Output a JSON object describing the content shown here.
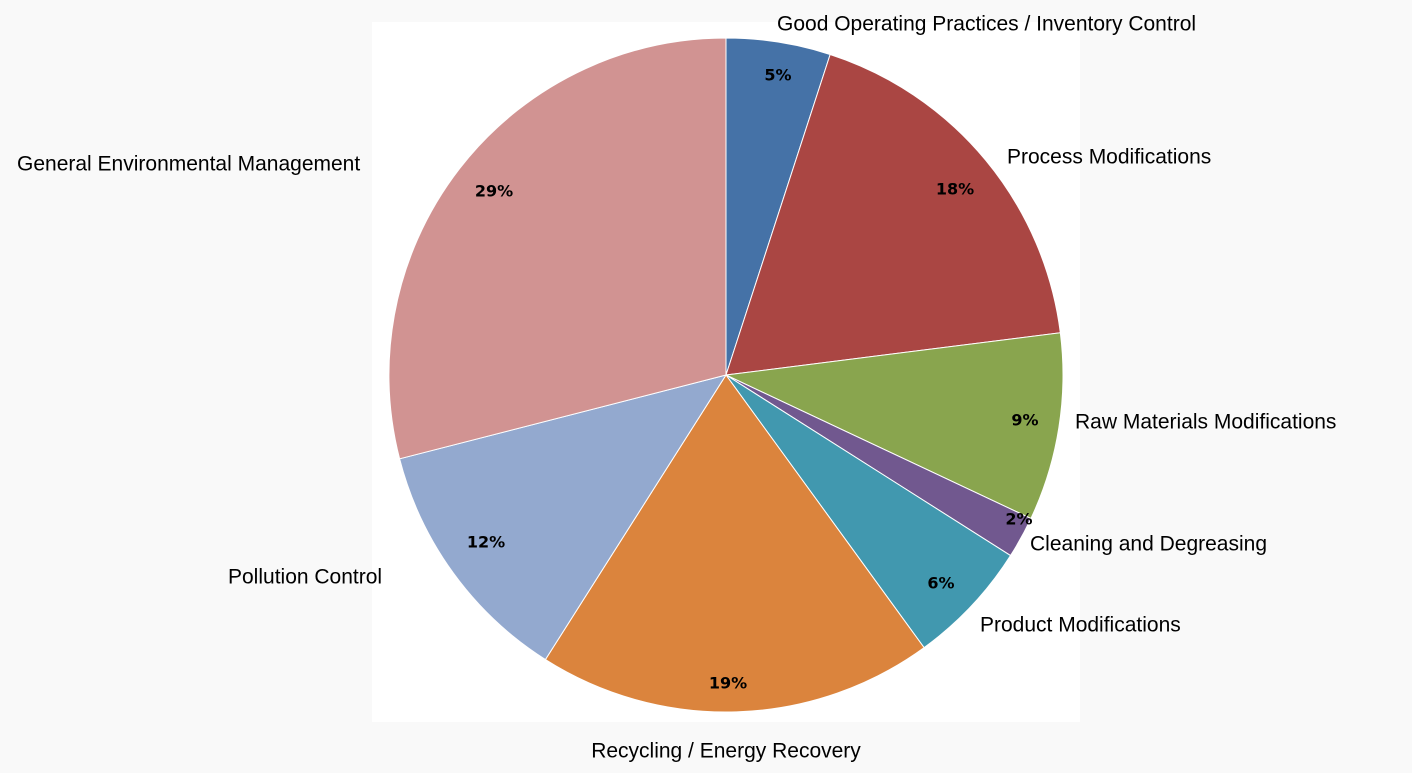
{
  "chart_data": {
    "type": "pie",
    "categories": [
      "Good Operating Practices / Inventory Control",
      "Process Modifications",
      "Raw Materials Modifications",
      "Cleaning and Degreasing",
      "Product Modifications",
      "Recycling / Energy Recovery",
      "Pollution Control",
      "General Environmental Management"
    ],
    "values": [
      5,
      18,
      9,
      2,
      6,
      19,
      12,
      29
    ],
    "value_labels": [
      "5%",
      "18%",
      "9%",
      "2%",
      "6%",
      "19%",
      "12%",
      "29%"
    ],
    "colors": [
      "#4572a7",
      "#aa4643",
      "#89a54e",
      "#71588f",
      "#4198af",
      "#db843d",
      "#93a9cf",
      "#d19392"
    ]
  }
}
